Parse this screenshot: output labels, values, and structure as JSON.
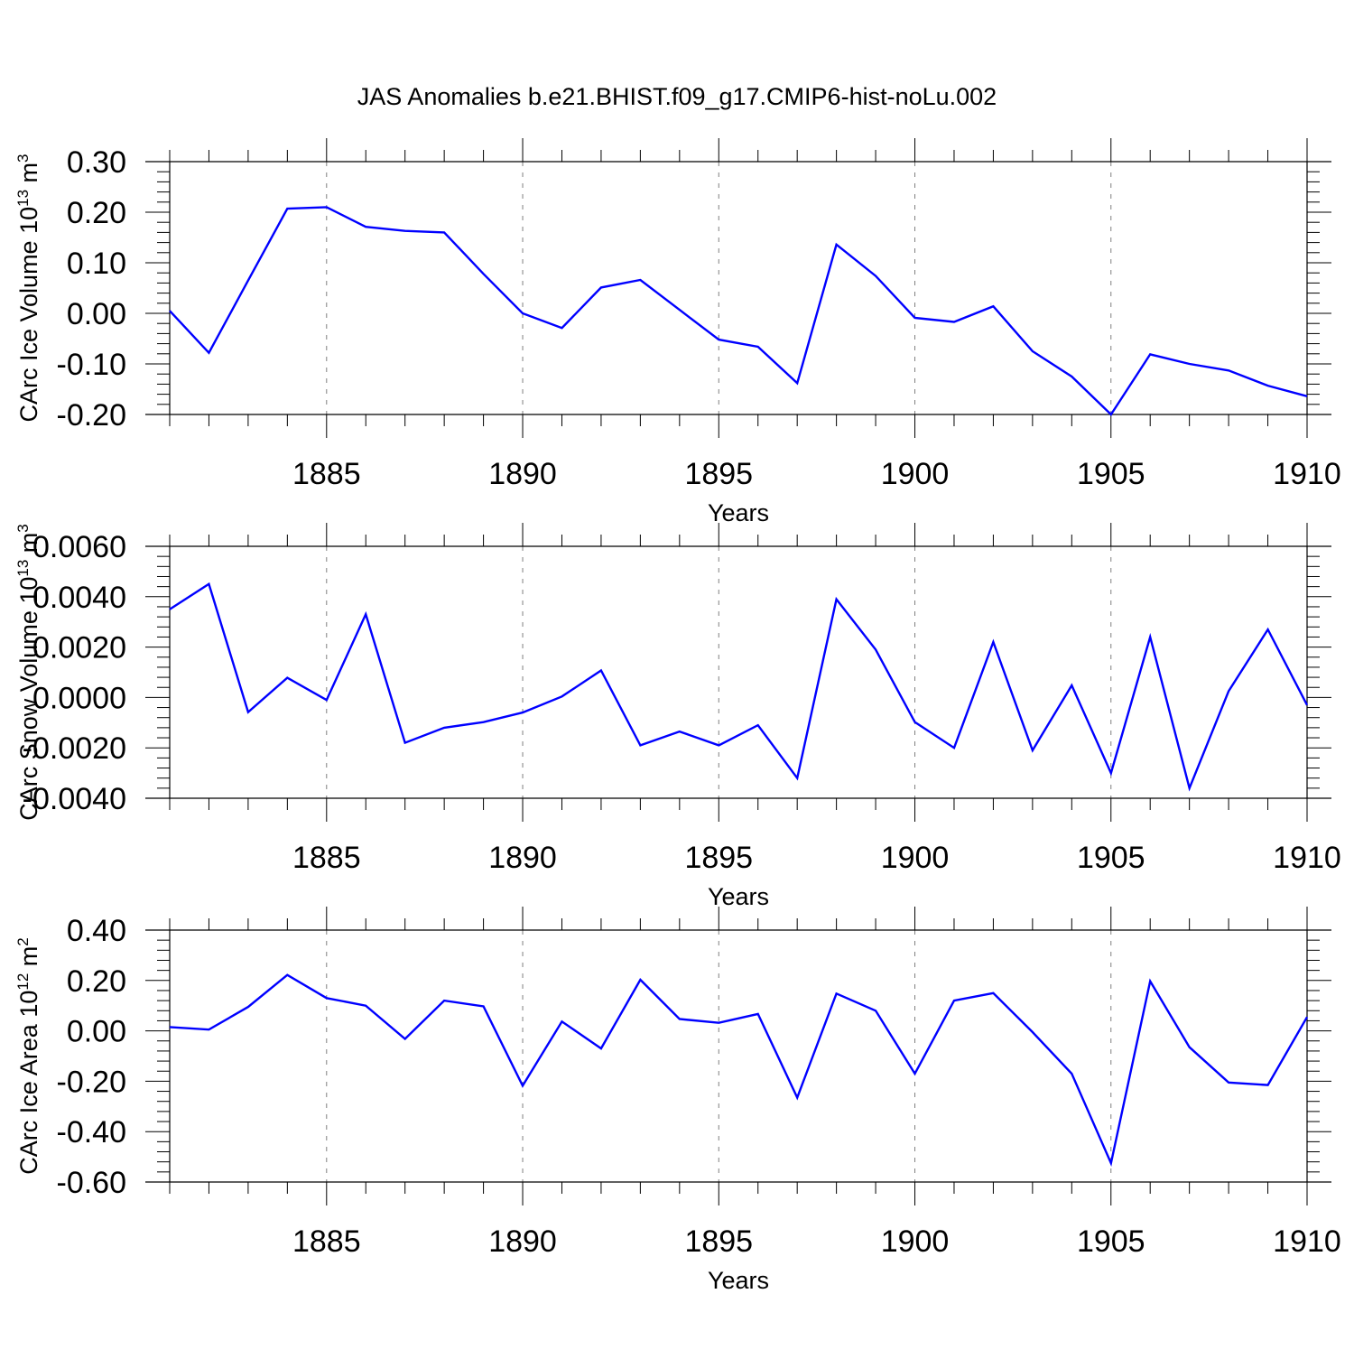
{
  "title": "JAS Anomalies b.e21.BHIST.f09_g17.CMIP6-hist-noLu.002",
  "colors": {
    "series": "#0000ff",
    "axis": "#000000",
    "grid": "#7f7f7f",
    "background": "#ffffff"
  },
  "chart_data": [
    {
      "type": "line",
      "ylabel": "CArc Ice Volume 10",
      "ylabel_exp": "13",
      "ylabel_unit": " m",
      "ylabel_unit_exp": "3",
      "xlabel": "Years",
      "xlim": [
        1881,
        1910
      ],
      "ylim": [
        -0.2,
        0.3
      ],
      "xticks": [
        1885,
        1890,
        1895,
        1900,
        1905,
        1910
      ],
      "xtick_labels": [
        "1885",
        "1890",
        "1895",
        "1900",
        "1905",
        "1910"
      ],
      "yticks": [
        -0.2,
        -0.1,
        0.0,
        0.1,
        0.2,
        0.3
      ],
      "ytick_labels": [
        "-0.20",
        "-0.10",
        "0.00",
        "0.10",
        "0.20",
        "0.30"
      ],
      "grid": "vertical dashed at major x ticks",
      "x": [
        1881,
        1882,
        1883,
        1884,
        1885,
        1886,
        1887,
        1888,
        1889,
        1890,
        1891,
        1892,
        1893,
        1894,
        1895,
        1896,
        1897,
        1898,
        1899,
        1900,
        1901,
        1902,
        1903,
        1904,
        1905,
        1906,
        1907,
        1908,
        1909,
        1910
      ],
      "series": [
        {
          "values": [
            0.005,
            -0.078,
            0.065,
            0.207,
            0.21,
            0.171,
            0.163,
            0.16,
            0.078,
            0.0,
            -0.029,
            0.051,
            0.066,
            0.007,
            -0.052,
            -0.066,
            -0.138,
            0.136,
            0.074,
            -0.009,
            -0.017,
            0.014,
            -0.075,
            -0.125,
            -0.2,
            -0.081,
            -0.1,
            -0.113,
            -0.143,
            -0.164
          ]
        }
      ]
    },
    {
      "type": "line",
      "ylabel": "CArc Snow Volume 10",
      "ylabel_exp": "13",
      "ylabel_unit": " m",
      "ylabel_unit_exp": "3",
      "xlabel": "Years",
      "xlim": [
        1881,
        1910
      ],
      "ylim": [
        -0.004,
        0.006
      ],
      "xticks": [
        1885,
        1890,
        1895,
        1900,
        1905,
        1910
      ],
      "xtick_labels": [
        "1885",
        "1890",
        "1895",
        "1900",
        "1905",
        "1910"
      ],
      "yticks": [
        -0.004,
        -0.002,
        0.0,
        0.002,
        0.004,
        0.006
      ],
      "ytick_labels": [
        "-0.0040",
        "-0.0020",
        "0.0000",
        "0.0020",
        "0.0040",
        "0.0060"
      ],
      "grid": "vertical dashed at major x ticks",
      "x": [
        1881,
        1882,
        1883,
        1884,
        1885,
        1886,
        1887,
        1888,
        1889,
        1890,
        1891,
        1892,
        1893,
        1894,
        1895,
        1896,
        1897,
        1898,
        1899,
        1900,
        1901,
        1902,
        1903,
        1904,
        1905,
        1906,
        1907,
        1908,
        1909,
        1910
      ],
      "series": [
        {
          "values": [
            0.0035,
            0.0045,
            -0.00058,
            0.00078,
            -0.0001,
            0.0033,
            -0.0018,
            -0.0012,
            -0.00098,
            -0.0006,
            4e-05,
            0.00107,
            -0.0019,
            -0.00135,
            -0.0019,
            -0.0011,
            -0.0032,
            0.0039,
            0.0019,
            -0.00098,
            -0.002,
            0.0022,
            -0.0021,
            0.00048,
            -0.003,
            0.0024,
            -0.0036,
            0.00025,
            0.0027,
            -0.0003
          ]
        }
      ]
    },
    {
      "type": "line",
      "ylabel": "CArc Ice Area 10",
      "ylabel_exp": "12",
      "ylabel_unit": " m",
      "ylabel_unit_exp": "2",
      "xlabel": "Years",
      "xlim": [
        1881,
        1910
      ],
      "ylim": [
        -0.6,
        0.4
      ],
      "xticks": [
        1885,
        1890,
        1895,
        1900,
        1905,
        1910
      ],
      "xtick_labels": [
        "1885",
        "1890",
        "1895",
        "1900",
        "1905",
        "1910"
      ],
      "yticks": [
        -0.6,
        -0.4,
        -0.2,
        0.0,
        0.2,
        0.4
      ],
      "ytick_labels": [
        "-0.60",
        "-0.40",
        "-0.20",
        "0.00",
        "0.20",
        "0.40"
      ],
      "grid": "vertical dashed at major x ticks",
      "x": [
        1881,
        1882,
        1883,
        1884,
        1885,
        1886,
        1887,
        1888,
        1889,
        1890,
        1891,
        1892,
        1893,
        1894,
        1895,
        1896,
        1897,
        1898,
        1899,
        1900,
        1901,
        1902,
        1903,
        1904,
        1905,
        1906,
        1907,
        1908,
        1909,
        1910
      ],
      "series": [
        {
          "values": [
            0.015,
            0.005,
            0.095,
            0.222,
            0.13,
            0.1,
            -0.032,
            0.12,
            0.097,
            -0.218,
            0.037,
            -0.07,
            0.203,
            0.047,
            0.032,
            0.067,
            -0.265,
            0.148,
            0.08,
            -0.17,
            0.12,
            0.15,
            -0.005,
            -0.17,
            -0.525,
            0.197,
            -0.065,
            -0.205,
            -0.215,
            0.055
          ]
        }
      ]
    }
  ]
}
